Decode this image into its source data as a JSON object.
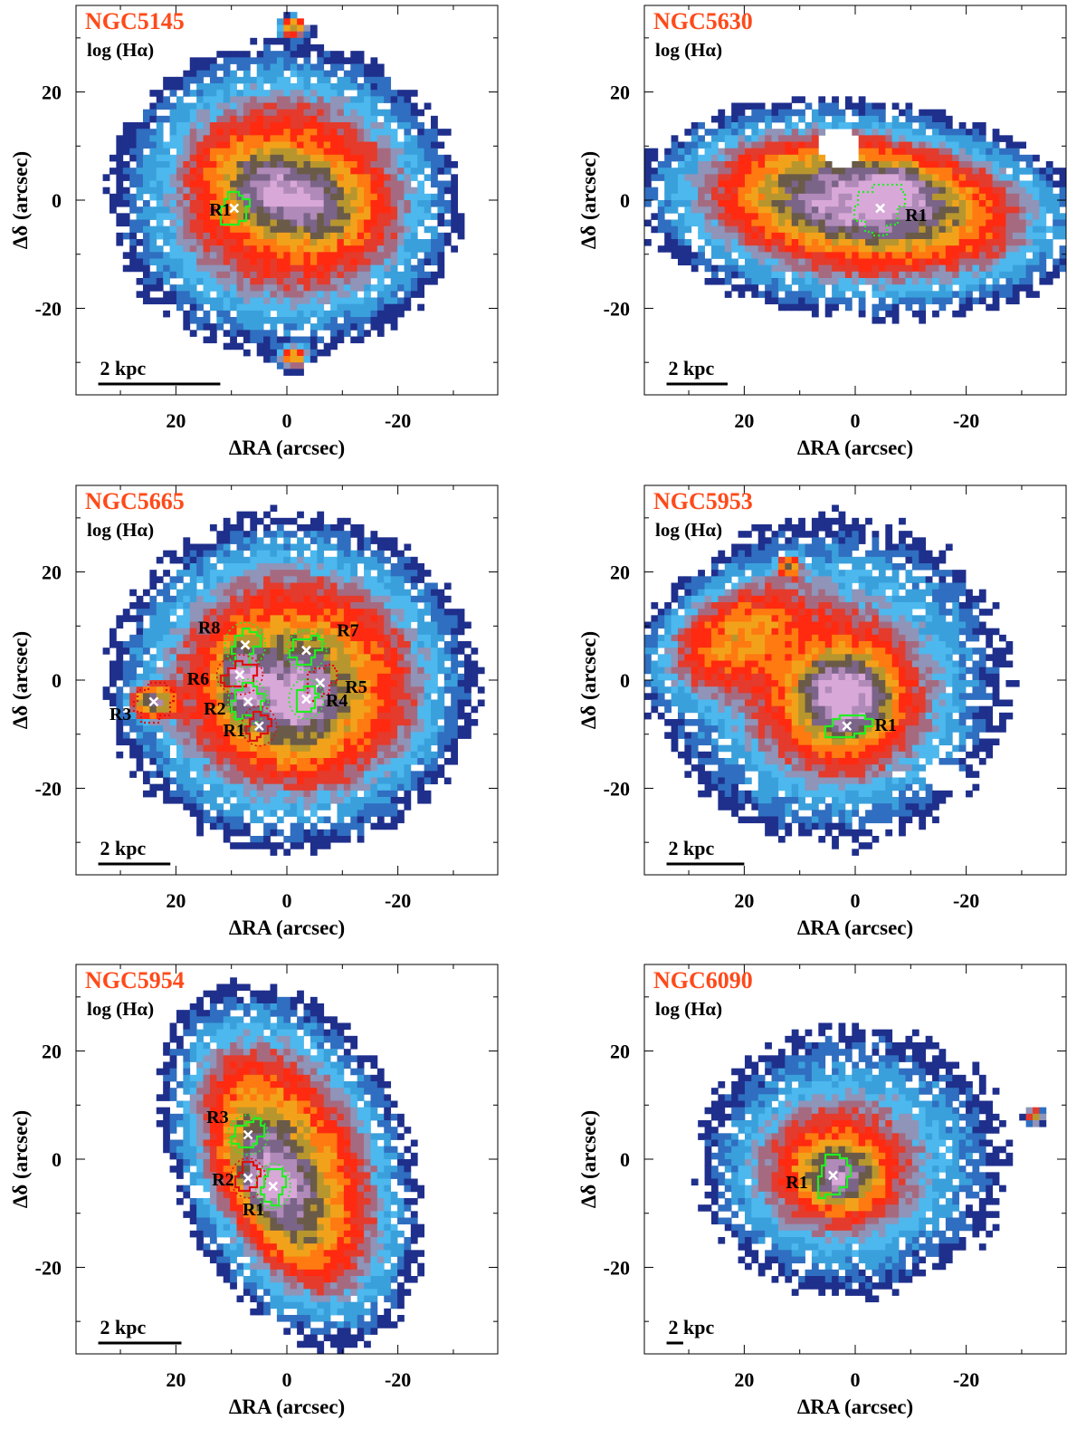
{
  "figure": {
    "axis_labels": {
      "x": "ΔRA (arcsec)",
      "y": "Δδ (arcsec)"
    },
    "map_label": "log (Hα)",
    "colors": {
      "name": "#ff4a1a",
      "region_green": "#22ee22",
      "region_red": "#e01010",
      "marker": "#ffffff",
      "axis": "#000000",
      "levels": [
        "#1f2f8c",
        "#2f6ec0",
        "#3aa0dc",
        "#4cb8ee",
        "#8f94b8",
        "#a66a80",
        "#e43b2c",
        "#ff2a10",
        "#ff7a10",
        "#f2a21a",
        "#b8962e",
        "#6a5a48",
        "#7a6488",
        "#b08ab8",
        "#d8a8d8"
      ]
    }
  },
  "chart_data": [
    {
      "type": "heatmap",
      "title": "NGC5145",
      "xlabel": "ΔRA (arcsec)",
      "ylabel": "Δδ (arcsec)",
      "xlim": [
        38,
        -38
      ],
      "ylim": [
        -36,
        36
      ],
      "xticks": [
        20,
        0,
        -20
      ],
      "yticks": [
        20,
        0,
        -20
      ],
      "tick_labels": {
        "x": [
          "20",
          "0",
          "-20"
        ],
        "y": [
          "20",
          "0",
          "-20"
        ]
      },
      "scalebar": {
        "label": "2 kpc",
        "length_arcsec": 22
      },
      "emission": [
        {
          "x0": 2,
          "y0": 0,
          "rx": 30,
          "ry": 29,
          "peak": 2.3,
          "rot": 0,
          "hole": 0
        },
        {
          "x0": -2,
          "y0": 1,
          "rx": 23,
          "ry": 20,
          "peak": 3.0,
          "rot": 0.3,
          "hole": 0
        },
        {
          "x0": 0,
          "y0": 1,
          "rx": 13,
          "ry": 7.5,
          "peak": 9.0,
          "rot": 0.35,
          "hole": 0
        },
        {
          "x0": -1,
          "y0": 32,
          "rx": 2.5,
          "ry": 2,
          "peak": 6,
          "rot": 0,
          "hole": 0
        },
        {
          "x0": -1,
          "y0": -29,
          "rx": 2.5,
          "ry": 2,
          "peak": 6,
          "rot": 0,
          "hole": 0
        }
      ],
      "regions": [
        {
          "label": "R1",
          "x": 9.5,
          "y": -1.5,
          "dx": 12,
          "dy": -1.5,
          "color": "green",
          "style": "solid",
          "w": 4,
          "h": 5
        }
      ]
    },
    {
      "type": "heatmap",
      "title": "NGC5630",
      "xlabel": "ΔRA (arcsec)",
      "ylabel": "Δδ (arcsec)",
      "xlim": [
        38,
        -38
      ],
      "ylim": [
        -36,
        36
      ],
      "xticks": [
        20,
        0,
        -20
      ],
      "yticks": [
        20,
        0,
        -20
      ],
      "tick_labels": {
        "x": [
          "20",
          "0",
          "-20"
        ],
        "y": [
          "20",
          "0",
          "-20"
        ]
      },
      "scalebar": {
        "label": "2 kpc",
        "length_arcsec": 11
      },
      "emission": [
        {
          "x0": 0,
          "y0": -2,
          "rx": 37,
          "ry": 20,
          "peak": 2.6,
          "rot": 0.08,
          "hole": 0
        },
        {
          "x0": -2,
          "y0": -1,
          "rx": 30,
          "ry": 12,
          "peak": 4.6,
          "rot": 0.12,
          "hole": 0
        },
        {
          "x0": -1,
          "y0": 0,
          "rx": 18,
          "ry": 8,
          "peak": 8.0,
          "rot": 0.12,
          "hole": 0
        },
        {
          "x0": -7,
          "y0": 2,
          "rx": 5,
          "ry": 3.5,
          "peak": 11.5,
          "rot": 0,
          "hole": 0
        },
        {
          "x0": 3,
          "y0": 10,
          "rx": 3.8,
          "ry": 3.8,
          "peak": 0,
          "rot": 0,
          "hole": 1
        }
      ],
      "regions": [
        {
          "label": "R1",
          "x": -4.5,
          "y": -1.5,
          "dx": -11,
          "dy": -2.5,
          "color": "green",
          "style": "dotted",
          "w": 7,
          "h": 8
        }
      ]
    },
    {
      "type": "heatmap",
      "title": "NGC5665",
      "xlabel": "ΔRA (arcsec)",
      "ylabel": "Δδ (arcsec)",
      "xlim": [
        38,
        -38
      ],
      "ylim": [
        -36,
        36
      ],
      "xticks": [
        20,
        0,
        -20
      ],
      "yticks": [
        20,
        0,
        -20
      ],
      "tick_labels": {
        "x": [
          "20",
          "0",
          "-20"
        ],
        "y": [
          "20",
          "0",
          "-20"
        ]
      },
      "scalebar": {
        "label": "2 kpc",
        "length_arcsec": 13
      },
      "emission": [
        {
          "x0": 0,
          "y0": 0,
          "rx": 32,
          "ry": 31,
          "peak": 2.3,
          "rot": 0,
          "hole": 0
        },
        {
          "x0": -2,
          "y0": -1,
          "rx": 22,
          "ry": 20,
          "peak": 4.8,
          "rot": 0,
          "hole": 0
        },
        {
          "x0": -1,
          "y0": -3,
          "rx": 10,
          "ry": 10,
          "peak": 6.5,
          "rot": 0,
          "hole": 0
        },
        {
          "x0": 24,
          "y0": -4,
          "rx": 4,
          "ry": 3,
          "peak": 8.5,
          "rot": 0,
          "hole": 0
        },
        {
          "x0": 8,
          "y0": 0,
          "rx": 4,
          "ry": 7,
          "peak": 9.0,
          "rot": 0,
          "hole": 0
        },
        {
          "x0": -1,
          "y0": -4,
          "rx": 4,
          "ry": 3,
          "peak": 10.5,
          "rot": 0,
          "hole": 0
        }
      ],
      "regions": [
        {
          "label": "R8",
          "x": 7.5,
          "y": 6.5,
          "dx": 14,
          "dy": 10,
          "color": "green",
          "style": "solid",
          "w": 4,
          "h": 5
        },
        {
          "label": "R7",
          "x": -3.5,
          "y": 5.5,
          "dx": -11,
          "dy": 9.5,
          "color": "green",
          "style": "solid",
          "w": 4,
          "h": 4
        },
        {
          "label": "R6",
          "x": 8.5,
          "y": 1,
          "dx": 16,
          "dy": 0.5,
          "color": "red",
          "style": "solid",
          "w": 5,
          "h": 4
        },
        {
          "label": "R5",
          "x": -6,
          "y": -0.5,
          "dx": -12.5,
          "dy": -1,
          "color": "red",
          "style": "dotted",
          "w": 4,
          "h": 6
        },
        {
          "label": "R4",
          "x": -3.5,
          "y": -3.5,
          "dx": -9,
          "dy": -3.5,
          "color": "green",
          "style": "solid",
          "w": 3,
          "h": 4
        },
        {
          "label": "R2",
          "x": 7,
          "y": -4,
          "dx": 13,
          "dy": -5,
          "color": "green",
          "style": "solid",
          "w": 4,
          "h": 5
        },
        {
          "label": "R1",
          "x": 5,
          "y": -8.5,
          "dx": 9.5,
          "dy": -9,
          "color": "red",
          "style": "solid",
          "w": 3,
          "h": 4
        },
        {
          "label": "R3",
          "x": 24,
          "y": -4,
          "dx": 30,
          "dy": -6,
          "color": "red",
          "style": "dotted",
          "w": 6,
          "h": 6
        }
      ]
    },
    {
      "type": "heatmap",
      "title": "NGC5953",
      "xlabel": "ΔRA (arcsec)",
      "ylabel": "Δδ (arcsec)",
      "xlim": [
        38,
        -38
      ],
      "ylim": [
        -36,
        36
      ],
      "xticks": [
        20,
        0,
        -20
      ],
      "yticks": [
        20,
        0,
        -20
      ],
      "tick_labels": {
        "x": [
          "20",
          "0",
          "-20"
        ],
        "y": [
          "20",
          "0",
          "-20"
        ]
      },
      "scalebar": {
        "label": "2 kpc",
        "length_arcsec": 14
      },
      "emission": [
        {
          "x0": 4,
          "y0": 0,
          "rx": 33,
          "ry": 32,
          "peak": 2.3,
          "rot": 0,
          "hole": 0
        },
        {
          "x0": 22,
          "y0": 8,
          "rx": 15,
          "ry": 9,
          "peak": 3.8,
          "rot": -0.5,
          "hole": 0
        },
        {
          "x0": 3,
          "y0": -4,
          "rx": 15,
          "ry": 14,
          "peak": 3.9,
          "rot": 0,
          "hole": 0
        },
        {
          "x0": 2,
          "y0": -3,
          "rx": 7.5,
          "ry": 7.5,
          "peak": 12.0,
          "rot": 0,
          "hole": 0
        },
        {
          "x0": 12,
          "y0": 21,
          "rx": 2,
          "ry": 2,
          "peak": 6,
          "rot": 0,
          "hole": 0
        },
        {
          "x0": -16,
          "y0": -18,
          "rx": 3.5,
          "ry": 2.5,
          "peak": 0,
          "rot": 0,
          "hole": 1
        }
      ],
      "regions": [
        {
          "label": "R1",
          "x": 1.5,
          "y": -8.5,
          "dx": -5.5,
          "dy": -8,
          "color": "green",
          "style": "solid",
          "w": 7,
          "h": 3
        }
      ]
    },
    {
      "type": "heatmap",
      "title": "NGC5954",
      "xlabel": "ΔRA (arcsec)",
      "ylabel": "Δδ (arcsec)",
      "xlim": [
        38,
        -38
      ],
      "ylim": [
        -36,
        36
      ],
      "xticks": [
        20,
        0,
        -20
      ],
      "yticks": [
        20,
        0,
        -20
      ],
      "tick_labels": {
        "x": [
          "20",
          "0",
          "-20"
        ],
        "y": [
          "20",
          "0",
          "-20"
        ]
      },
      "scalebar": {
        "label": "2 kpc",
        "length_arcsec": 15
      },
      "emission": [
        {
          "x0": -1,
          "y0": 0,
          "rx": 21,
          "ry": 33,
          "peak": 2.3,
          "rot": -0.3,
          "hole": 0
        },
        {
          "x0": 0,
          "y0": -2,
          "rx": 14,
          "ry": 26,
          "peak": 4.0,
          "rot": -0.45,
          "hole": 0
        },
        {
          "x0": 2,
          "y0": -4,
          "rx": 7,
          "ry": 16,
          "peak": 6.8,
          "rot": -0.4,
          "hole": 0
        },
        {
          "x0": 4,
          "y0": -5,
          "rx": 3.5,
          "ry": 3,
          "peak": 13,
          "rot": 0,
          "hole": 0
        }
      ],
      "regions": [
        {
          "label": "R3",
          "x": 7,
          "y": 4.5,
          "dx": 12.5,
          "dy": 8,
          "color": "green",
          "style": "solid",
          "w": 4,
          "h": 4
        },
        {
          "label": "R2",
          "x": 7,
          "y": -3.5,
          "dx": 11.5,
          "dy": -3.5,
          "color": "red",
          "style": "solid",
          "w": 3,
          "h": 4
        },
        {
          "label": "R1",
          "x": 2.5,
          "y": -5,
          "dx": 6,
          "dy": -9,
          "color": "green",
          "style": "solid",
          "w": 3,
          "h": 5
        }
      ]
    },
    {
      "type": "heatmap",
      "title": "NGC6090",
      "xlabel": "ΔRA (arcsec)",
      "ylabel": "Δδ (arcsec)",
      "xlim": [
        38,
        -38
      ],
      "ylim": [
        -36,
        36
      ],
      "xticks": [
        20,
        0,
        -20
      ],
      "yticks": [
        20,
        0,
        -20
      ],
      "tick_labels": {
        "x": [
          "20",
          "0",
          "-20"
        ],
        "y": [
          "20",
          "0",
          "-20"
        ]
      },
      "scalebar": {
        "label": "2 kpc",
        "length_arcsec": 3
      },
      "emission": [
        {
          "x0": 0,
          "y0": 0,
          "rx": 33,
          "ry": 30,
          "peak": 1.6,
          "rot": 0,
          "hole": 0
        },
        {
          "x0": 4,
          "y0": -2,
          "rx": 16,
          "ry": 14,
          "peak": 2.9,
          "rot": 0,
          "hole": 0
        },
        {
          "x0": 3,
          "y0": -3,
          "rx": 7,
          "ry": 6,
          "peak": 8.0,
          "rot": 0,
          "hole": 0
        },
        {
          "x0": -32,
          "y0": 8,
          "rx": 1.5,
          "ry": 1.5,
          "peak": 6,
          "rot": 0,
          "hole": 0
        }
      ],
      "regions": [
        {
          "label": "R1",
          "x": 4,
          "y": -3,
          "dx": 10.5,
          "dy": -4,
          "color": "green",
          "style": "solid",
          "w": 5,
          "h": 6
        }
      ]
    }
  ]
}
